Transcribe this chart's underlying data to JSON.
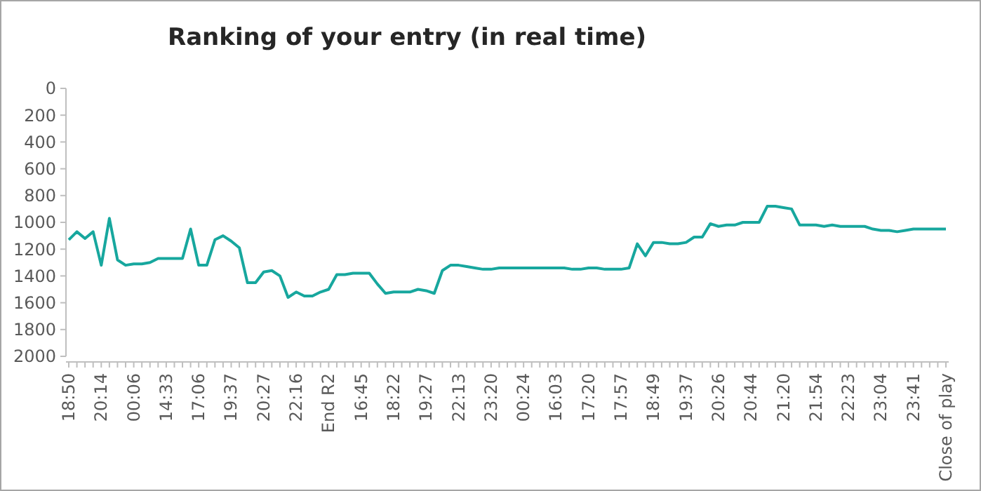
{
  "chart_data": {
    "type": "line",
    "title": "Ranking of your entry (in real time)",
    "categories": [
      "18:50",
      null,
      null,
      null,
      "20:14",
      null,
      null,
      null,
      "00:06",
      null,
      null,
      null,
      "14:33",
      null,
      null,
      null,
      "17:06",
      null,
      null,
      null,
      "19:37",
      null,
      null,
      null,
      "20:27",
      null,
      null,
      null,
      "22:16",
      null,
      null,
      null,
      "End R2",
      null,
      null,
      null,
      "16:45",
      null,
      null,
      null,
      "18:22",
      null,
      null,
      null,
      "19:27",
      null,
      null,
      null,
      "22:13",
      null,
      null,
      null,
      "23:20",
      null,
      null,
      null,
      "00:24",
      null,
      null,
      null,
      "16:03",
      null,
      null,
      null,
      "17:20",
      null,
      null,
      null,
      "17:57",
      null,
      null,
      null,
      "18:49",
      null,
      null,
      null,
      "19:37",
      null,
      null,
      null,
      "20:26",
      null,
      null,
      null,
      "20:44",
      null,
      null,
      null,
      "21:20",
      null,
      null,
      null,
      "21:54",
      null,
      null,
      null,
      "22:23",
      null,
      null,
      null,
      "23:04",
      null,
      null,
      null,
      "23:41",
      null,
      null,
      null,
      "Close of play"
    ],
    "series": [
      {
        "color": "#17a79e",
        "values": [
          1130,
          1070,
          1120,
          1070,
          1320,
          970,
          1280,
          1320,
          1310,
          1310,
          1300,
          1270,
          1270,
          1270,
          1270,
          1050,
          1320,
          1320,
          1130,
          1100,
          1140,
          1190,
          1450,
          1450,
          1370,
          1360,
          1400,
          1560,
          1520,
          1550,
          1550,
          1520,
          1500,
          1390,
          1390,
          1380,
          1380,
          1380,
          1460,
          1530,
          1520,
          1520,
          1520,
          1500,
          1510,
          1530,
          1360,
          1320,
          1320,
          1330,
          1340,
          1350,
          1350,
          1340,
          1340,
          1340,
          1340,
          1340,
          1340,
          1340,
          1340,
          1340,
          1350,
          1350,
          1340,
          1340,
          1350,
          1350,
          1350,
          1340,
          1160,
          1250,
          1150,
          1150,
          1160,
          1160,
          1150,
          1110,
          1110,
          1010,
          1030,
          1020,
          1020,
          1000,
          1000,
          1000,
          880,
          880,
          890,
          900,
          1020,
          1020,
          1020,
          1030,
          1020,
          1030,
          1030,
          1030,
          1030,
          1050,
          1060,
          1060,
          1070,
          1060,
          1050,
          1050,
          1050,
          1050,
          1050
        ]
      }
    ],
    "ylim": [
      2000,
      0
    ],
    "yticks": [
      0,
      200,
      400,
      600,
      800,
      1000,
      1200,
      1400,
      1600,
      1800,
      2000
    ],
    "marker": "none",
    "line_style": "solid"
  }
}
